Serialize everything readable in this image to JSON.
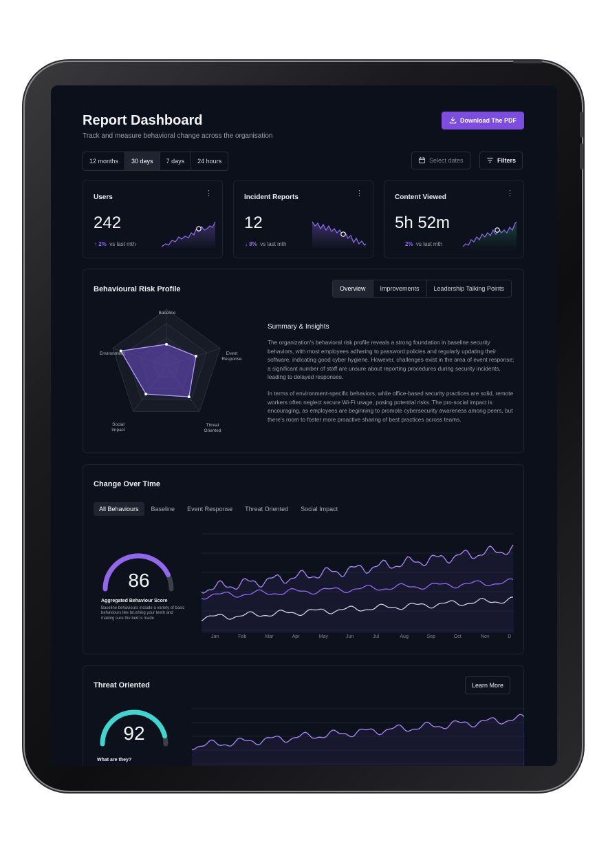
{
  "header": {
    "title": "Report Dashboard",
    "subtitle": "Track and measure behavioral change across the organisation",
    "download_label": "Download The PDF",
    "download_icon": "download-icon"
  },
  "range_tabs": [
    "12 months",
    "30 days",
    "7 days",
    "24 hours"
  ],
  "range_active": "30 days",
  "select_dates": {
    "label": "Select dates",
    "icon": "calendar-icon"
  },
  "filters": {
    "label": "Filters",
    "icon": "filter-icon"
  },
  "kpis": [
    {
      "title": "Users",
      "value": "242",
      "arrow": "↑",
      "delta": "2%",
      "note": "vs last mth"
    },
    {
      "title": "Incident Reports",
      "value": "12",
      "arrow": "↓",
      "delta": "8%",
      "note": "vs last mth"
    },
    {
      "title": "Content Viewed",
      "value": "5h 52m",
      "arrow": "",
      "delta": "2%",
      "note": "vs last mth"
    }
  ],
  "risk": {
    "title": "Behavioural Risk Profile",
    "tabs": [
      "Overview",
      "Improvements",
      "Leadership Talking Points"
    ],
    "active_tab": "Overview",
    "axes": [
      "Baseline",
      "Event\nResponse",
      "Threat\nOriented",
      "Social\nImpact",
      "Environment"
    ],
    "values": [
      0.38,
      0.55,
      0.68,
      0.62,
      0.85
    ],
    "summary_title": "Summary & Insights",
    "summary_p1": "The organization's behavioral risk profile reveals a strong foundation in baseline security behaviors, with most employees adhering to password policies and regularly updating their software, indicating good cyber hygiene. However, challenges exist in the area of event response; a significant number of staff are unsure about reporting procedures during security incidents, leading to delayed responses.",
    "summary_p2": "In terms of environment-specific behaviors, while office-based security practices are solid, remote workers often neglect secure Wi-Fi usage, posing potential risks. The pro-social impact is encouraging, as employees are beginning to promote cybersecurity awareness among peers, but there's room to foster more proactive sharing of best practices across teams."
  },
  "change": {
    "title": "Change Over Time",
    "tabs": [
      "All Behaviours",
      "Baseline",
      "Event Response",
      "Threat Oriented",
      "Social Impact"
    ],
    "active_tab": "All Behaviours",
    "score": "86",
    "score_fraction": 0.86,
    "score_label": "Aggregated Behaviour Score",
    "score_desc": "Baseline behaviours include a variety of basic behaviours like brushing your teeth and making sure the bed is made",
    "months": [
      "Jan",
      "Feb",
      "Mar",
      "Apr",
      "May",
      "Jun",
      "Jul",
      "Aug",
      "Sep",
      "Oct",
      "Nov",
      "D"
    ]
  },
  "threat": {
    "title": "Threat Oriented",
    "learn_more": "Learn More",
    "score": "92",
    "score_fraction": 0.92,
    "question": "What are they?"
  },
  "colors": {
    "accent": "#7c4ddf",
    "line": "#8f6df2",
    "teal": "#3fd6d2",
    "background": "#0c101a"
  }
}
